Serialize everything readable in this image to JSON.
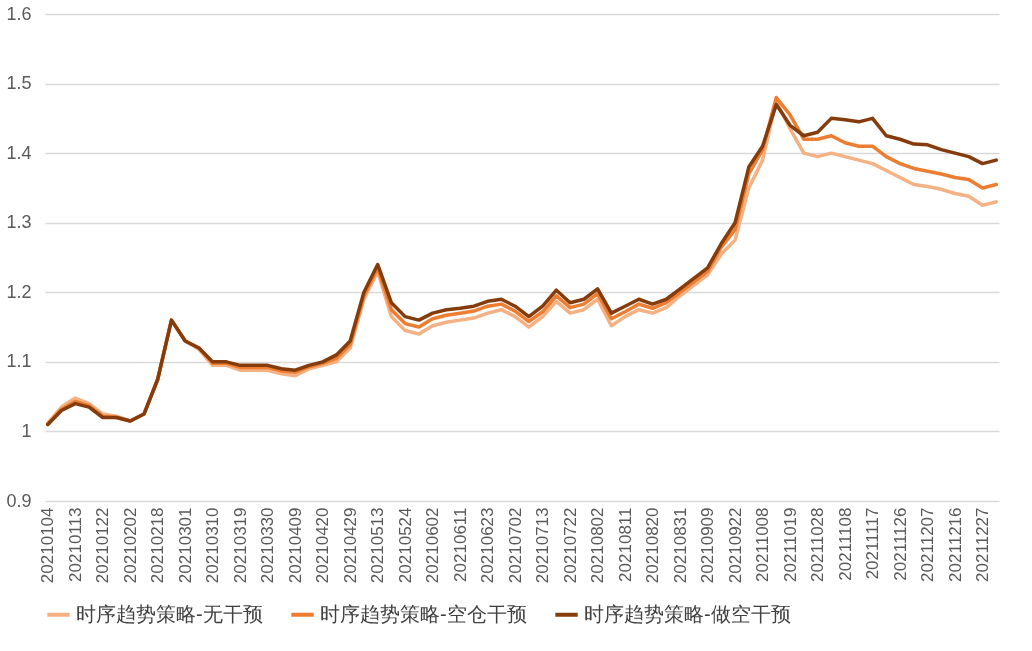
{
  "chart_data": {
    "type": "line",
    "categories": [
      "20210104",
      null,
      "20210113",
      null,
      "20210122",
      null,
      "20210202",
      null,
      "20210218",
      null,
      "20210301",
      null,
      "20210310",
      null,
      "20210319",
      null,
      "20210330",
      null,
      "20210409",
      null,
      "20210420",
      null,
      "20210429",
      null,
      "20210513",
      null,
      "20210524",
      null,
      "20210602",
      null,
      "20210611",
      null,
      "20210623",
      null,
      "20210702",
      null,
      "20210713",
      null,
      "20210722",
      null,
      "20210802",
      null,
      "20210811",
      null,
      "20210820",
      null,
      "20210831",
      null,
      "20210909",
      null,
      "20210922",
      null,
      "20211008",
      null,
      "20211019",
      null,
      "20211028",
      null,
      "20211108",
      null,
      "20211117",
      null,
      "20211126",
      null,
      "20211207",
      null,
      "20211216",
      null,
      "20211227",
      null
    ],
    "series": [
      {
        "name": "时序趋势策略-无干预",
        "color": "#f4b183",
        "values": [
          1.012,
          1.035,
          1.048,
          1.04,
          1.025,
          1.022,
          1.015,
          1.025,
          1.075,
          1.16,
          1.13,
          1.118,
          1.095,
          1.095,
          1.088,
          1.088,
          1.088,
          1.083,
          1.08,
          1.09,
          1.095,
          1.1,
          1.12,
          1.19,
          1.23,
          1.165,
          1.145,
          1.14,
          1.152,
          1.157,
          1.16,
          1.163,
          1.17,
          1.175,
          1.165,
          1.15,
          1.165,
          1.187,
          1.17,
          1.175,
          1.19,
          1.152,
          1.165,
          1.175,
          1.17,
          1.178,
          1.195,
          1.21,
          1.225,
          1.255,
          1.275,
          1.35,
          1.39,
          1.475,
          1.435,
          1.4,
          1.395,
          1.4,
          1.395,
          1.39,
          1.385,
          1.375,
          1.365,
          1.355,
          1.352,
          1.348,
          1.342,
          1.338,
          1.325,
          1.33
        ]
      },
      {
        "name": "时序趋势策略-空仓干预",
        "color": "#ed7d31",
        "values": [
          1.01,
          1.032,
          1.043,
          1.037,
          1.022,
          1.02,
          1.015,
          1.025,
          1.075,
          1.16,
          1.13,
          1.12,
          1.098,
          1.098,
          1.092,
          1.092,
          1.092,
          1.087,
          1.085,
          1.093,
          1.098,
          1.105,
          1.125,
          1.195,
          1.235,
          1.175,
          1.155,
          1.15,
          1.162,
          1.167,
          1.17,
          1.173,
          1.18,
          1.183,
          1.173,
          1.158,
          1.172,
          1.195,
          1.178,
          1.183,
          1.198,
          1.162,
          1.172,
          1.183,
          1.177,
          1.185,
          1.2,
          1.215,
          1.23,
          1.265,
          1.29,
          1.37,
          1.405,
          1.48,
          1.455,
          1.42,
          1.42,
          1.425,
          1.415,
          1.41,
          1.41,
          1.395,
          1.385,
          1.378,
          1.374,
          1.37,
          1.365,
          1.362,
          1.35,
          1.355
        ]
      },
      {
        "name": "时序趋势策略-做空干预",
        "color": "#843c0c",
        "values": [
          1.01,
          1.03,
          1.04,
          1.035,
          1.02,
          1.02,
          1.015,
          1.025,
          1.075,
          1.16,
          1.13,
          1.12,
          1.1,
          1.1,
          1.095,
          1.095,
          1.095,
          1.09,
          1.088,
          1.095,
          1.1,
          1.11,
          1.13,
          1.2,
          1.24,
          1.185,
          1.165,
          1.16,
          1.17,
          1.175,
          1.177,
          1.18,
          1.187,
          1.19,
          1.18,
          1.165,
          1.18,
          1.203,
          1.185,
          1.19,
          1.205,
          1.17,
          1.18,
          1.19,
          1.183,
          1.19,
          1.205,
          1.22,
          1.235,
          1.27,
          1.3,
          1.38,
          1.41,
          1.47,
          1.44,
          1.425,
          1.43,
          1.45,
          1.448,
          1.445,
          1.45,
          1.425,
          1.42,
          1.413,
          1.412,
          1.405,
          1.4,
          1.395,
          1.385,
          1.39
        ]
      }
    ],
    "ylim": [
      0.9,
      1.6
    ],
    "yticks": [
      0.9,
      1,
      1.1,
      1.2,
      1.3,
      1.4,
      1.5,
      1.6
    ],
    "grid": "y",
    "legend": "bottom",
    "marker": "none",
    "line_style": "solid"
  }
}
